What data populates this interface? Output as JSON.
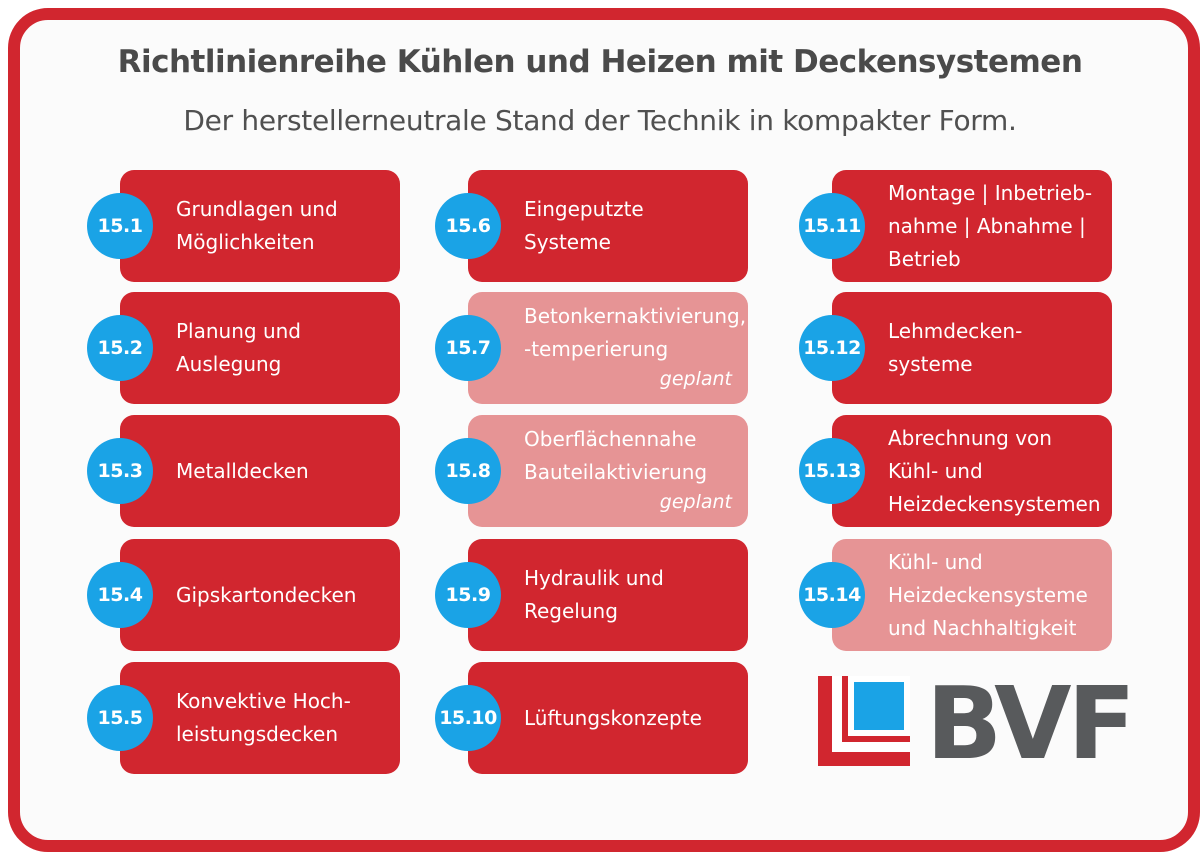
{
  "title": "Richtlinienreihe Kühlen und Heizen mit Deckensystemen",
  "subtitle": "Der herstellerneutrale Stand der Technik in kompakter Form.",
  "colors": {
    "frame": "#d1262f",
    "card": "#d1262f",
    "card_planned": "#e69495",
    "badge": "#1aa3e6",
    "title": "#4a4a4a"
  },
  "cards": [
    {
      "number": "15.1",
      "label": "Grundlagen und\nMöglichkeiten",
      "note": "",
      "planned": false
    },
    {
      "number": "15.2",
      "label": "Planung und\nAuslegung",
      "note": "",
      "planned": false
    },
    {
      "number": "15.3",
      "label": "Metalldecken",
      "note": "",
      "planned": false
    },
    {
      "number": "15.4",
      "label": "Gipskartondecken",
      "note": "",
      "planned": false
    },
    {
      "number": "15.5",
      "label": "Konvektive Hoch-\nleistungsdecken",
      "note": "",
      "planned": false
    },
    {
      "number": "15.6",
      "label": "Eingeputzte\nSysteme",
      "note": "",
      "planned": false
    },
    {
      "number": "15.7",
      "label": "Betonkernaktivierung,\n-temperierung",
      "note": "geplant",
      "planned": true
    },
    {
      "number": "15.8",
      "label": "Oberflächennahe\nBauteilaktivierung",
      "note": "geplant",
      "planned": true
    },
    {
      "number": "15.9",
      "label": "Hydraulik und\nRegelung",
      "note": "",
      "planned": false
    },
    {
      "number": "15.10",
      "label": "Lüftungskonzepte",
      "note": "",
      "planned": false
    },
    {
      "number": "15.11",
      "label": "Montage | Inbetrieb-\nnahme | Abnahme |\nBetrieb",
      "note": "",
      "planned": false
    },
    {
      "number": "15.12",
      "label": "Lehmdecken-\nsysteme",
      "note": "",
      "planned": false
    },
    {
      "number": "15.13",
      "label": "Abrechnung von\nKühl- und\nHeizdeckensystemen",
      "note": "",
      "planned": false
    },
    {
      "number": "15.14",
      "label": "Kühl- und\nHeizdeckensysteme\nund Nachhaltigkeit",
      "note": "",
      "planned": true
    }
  ],
  "logo": {
    "text": "BVF"
  }
}
